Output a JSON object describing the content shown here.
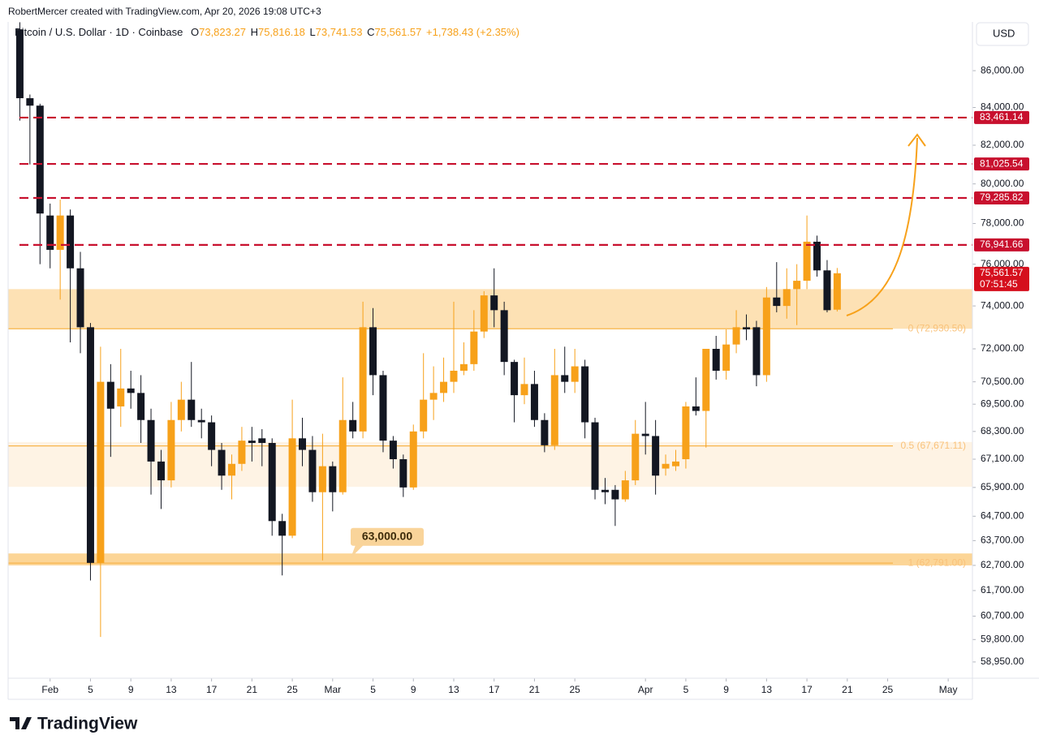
{
  "chart_data": {
    "type": "candlestick",
    "header": "RobertMercer created with TradingView.com, Apr 20, 2026 19:08 UTC+3",
    "legend": {
      "symbol": "Bitcoin / U.S. Dollar · 1D · Coinbase",
      "o": "O",
      "open": "73,823.27",
      "h": "H",
      "high": "75,816.18",
      "l": "L",
      "low": "73,741.53",
      "c": "C",
      "close": "75,561.57",
      "change": "+1,738.43 (+2.35%)"
    },
    "currency": "USD",
    "brand": "TradingView",
    "log_scale": true,
    "up_color": "#f7a11a",
    "down_color": "#131722",
    "x": [
      "2026-01-29",
      "2026-01-30",
      "2026-01-31",
      "2026-02-01",
      "2026-02-02",
      "2026-02-03",
      "2026-02-04",
      "2026-02-05",
      "2026-02-06",
      "2026-02-07",
      "2026-02-08",
      "2026-02-09",
      "2026-02-10",
      "2026-02-11",
      "2026-02-12",
      "2026-02-13",
      "2026-02-14",
      "2026-02-15",
      "2026-02-16",
      "2026-02-17",
      "2026-02-18",
      "2026-02-19",
      "2026-02-20",
      "2026-02-21",
      "2026-02-22",
      "2026-02-23",
      "2026-02-24",
      "2026-02-25",
      "2026-02-26",
      "2026-02-27",
      "2026-02-28",
      "2026-03-01",
      "2026-03-02",
      "2026-03-03",
      "2026-03-04",
      "2026-03-05",
      "2026-03-06",
      "2026-03-07",
      "2026-03-08",
      "2026-03-09",
      "2026-03-10",
      "2026-03-11",
      "2026-03-12",
      "2026-03-13",
      "2026-03-14",
      "2026-03-15",
      "2026-03-16",
      "2026-03-17",
      "2026-03-18",
      "2026-03-19",
      "2026-03-20",
      "2026-03-21",
      "2026-03-22",
      "2026-03-23",
      "2026-03-24",
      "2026-03-25",
      "2026-03-26",
      "2026-03-27",
      "2026-03-28",
      "2026-03-29",
      "2026-03-30",
      "2026-03-31",
      "2026-04-01",
      "2026-04-02",
      "2026-04-03",
      "2026-04-04",
      "2026-04-05",
      "2026-04-06",
      "2026-04-07",
      "2026-04-08",
      "2026-04-09",
      "2026-04-10",
      "2026-04-11",
      "2026-04-12",
      "2026-04-13",
      "2026-04-14",
      "2026-04-15",
      "2026-04-16",
      "2026-04-17",
      "2026-04-18",
      "2026-04-19",
      "2026-04-20"
    ],
    "open": [
      88300,
      84500,
      84100,
      78400,
      76700,
      78400,
      75800,
      73000,
      62800,
      70500,
      69400,
      70200,
      70000,
      68800,
      67000,
      66200,
      68800,
      69700,
      68800,
      68700,
      67500,
      66400,
      66900,
      67900,
      68000,
      67800,
      64500,
      63900,
      68000,
      67500,
      65700,
      66800,
      65700,
      68800,
      68300,
      73000,
      70800,
      67900,
      67100,
      65900,
      68300,
      69700,
      70000,
      70500,
      71000,
      71300,
      72800,
      74500,
      73800,
      71400,
      69900,
      70400,
      68800,
      67700,
      70800,
      70500,
      71200,
      68700,
      65800,
      65800,
      65400,
      66200,
      68200,
      68100,
      66700,
      66800,
      67100,
      69400,
      69200,
      72000,
      71000,
      72200,
      73000,
      73000,
      70800,
      74400,
      74000,
      74800,
      75200,
      77100,
      75700,
      73823.27
    ],
    "high": [
      88700,
      84700,
      84200,
      79000,
      79200,
      78700,
      76600,
      73200,
      72100,
      71300,
      72000,
      71000,
      70800,
      69300,
      67500,
      69600,
      70500,
      71400,
      69300,
      69000,
      67800,
      67300,
      68500,
      68500,
      68400,
      68000,
      64800,
      69700,
      68900,
      68100,
      68200,
      67000,
      70700,
      69600,
      74200,
      73900,
      71000,
      68100,
      67300,
      68600,
      71800,
      71200,
      71600,
      74200,
      72300,
      73800,
      74700,
      75800,
      74200,
      71500,
      71600,
      71000,
      69100,
      72000,
      72100,
      72000,
      71500,
      68900,
      66300,
      66000,
      66600,
      68800,
      69600,
      68800,
      67300,
      67500,
      69600,
      70700,
      72000,
      72600,
      72900,
      73800,
      73600,
      73300,
      74900,
      76100,
      75800,
      76000,
      78400,
      77400,
      76200,
      75816.18
    ],
    "low": [
      83300,
      81000,
      76000,
      75800,
      74300,
      72300,
      71800,
      62100,
      59900,
      67200,
      68500,
      69300,
      67800,
      65600,
      65000,
      65900,
      68300,
      68500,
      68000,
      66800,
      65800,
      65400,
      66600,
      67000,
      66800,
      63900,
      62300,
      63800,
      66800,
      65300,
      62900,
      64900,
      65600,
      68000,
      68000,
      69900,
      67400,
      66700,
      65500,
      65800,
      68000,
      68800,
      69600,
      70000,
      70800,
      71000,
      72500,
      73000,
      70800,
      68700,
      69500,
      68500,
      67400,
      67500,
      70000,
      70000,
      68000,
      65400,
      65200,
      64300,
      65300,
      66000,
      67300,
      65600,
      66400,
      66600,
      66700,
      69000,
      67600,
      70600,
      70600,
      71800,
      72400,
      70300,
      70500,
      73700,
      73400,
      73100,
      74800,
      75400,
      73700,
      73741.53
    ],
    "close": [
      84500,
      84100,
      78500,
      76700,
      78400,
      75800,
      73000,
      62800,
      70500,
      69300,
      70200,
      70000,
      68800,
      67000,
      66200,
      68800,
      69700,
      68800,
      68700,
      67500,
      66400,
      66900,
      67900,
      67800,
      67800,
      64500,
      63900,
      68000,
      67500,
      65700,
      66800,
      65700,
      68800,
      68300,
      73000,
      70800,
      67900,
      67100,
      65900,
      68300,
      69700,
      70000,
      70500,
      71000,
      71300,
      72800,
      74500,
      73800,
      71400,
      69900,
      70400,
      68800,
      67700,
      70800,
      70500,
      71200,
      68700,
      65800,
      65700,
      65400,
      66200,
      68200,
      68100,
      66400,
      66900,
      67000,
      69400,
      69200,
      72000,
      71000,
      72200,
      73000,
      72900,
      70800,
      74400,
      74000,
      74800,
      75200,
      77100,
      75700,
      73800,
      75561.57
    ],
    "xlim": [
      "2026-01-28",
      "2026-05-03"
    ],
    "xticks": [
      {
        "value": "2026-02-01",
        "label": "Feb"
      },
      {
        "value": "2026-02-05",
        "label": "5"
      },
      {
        "value": "2026-02-09",
        "label": "9"
      },
      {
        "value": "2026-02-13",
        "label": "13"
      },
      {
        "value": "2026-02-17",
        "label": "17"
      },
      {
        "value": "2026-02-21",
        "label": "21"
      },
      {
        "value": "2026-02-25",
        "label": "25"
      },
      {
        "value": "2026-03-01",
        "label": "Mar"
      },
      {
        "value": "2026-03-05",
        "label": "5"
      },
      {
        "value": "2026-03-09",
        "label": "9"
      },
      {
        "value": "2026-03-13",
        "label": "13"
      },
      {
        "value": "2026-03-17",
        "label": "17"
      },
      {
        "value": "2026-03-21",
        "label": "21"
      },
      {
        "value": "2026-03-25",
        "label": "25"
      },
      {
        "value": "2026-04-01",
        "label": "Apr"
      },
      {
        "value": "2026-04-05",
        "label": "5"
      },
      {
        "value": "2026-04-09",
        "label": "9"
      },
      {
        "value": "2026-04-13",
        "label": "13"
      },
      {
        "value": "2026-04-17",
        "label": "17"
      },
      {
        "value": "2026-04-21",
        "label": "21"
      },
      {
        "value": "2026-04-25",
        "label": "25"
      },
      {
        "value": "2026-05-01",
        "label": "May"
      }
    ],
    "ylim": [
      58340,
      88720
    ],
    "yticks": [
      {
        "value": 86000,
        "label": "86,000.00"
      },
      {
        "value": 84000,
        "label": "84,000.00"
      },
      {
        "value": 82000,
        "label": "82,000.00"
      },
      {
        "value": 80000,
        "label": "80,000.00"
      },
      {
        "value": 78000,
        "label": "78,000.00"
      },
      {
        "value": 76000,
        "label": "76,000.00"
      },
      {
        "value": 74000,
        "label": "74,000.00"
      },
      {
        "value": 72000,
        "label": "72,000.00"
      },
      {
        "value": 70500,
        "label": "70,500.00"
      },
      {
        "value": 69500,
        "label": "69,500.00"
      },
      {
        "value": 68300,
        "label": "68,300.00"
      },
      {
        "value": 67100,
        "label": "67,100.00"
      },
      {
        "value": 65900,
        "label": "65,900.00"
      },
      {
        "value": 64700,
        "label": "64,700.00"
      },
      {
        "value": 63700,
        "label": "63,700.00"
      },
      {
        "value": 62700,
        "label": "62,700.00"
      },
      {
        "value": 61700,
        "label": "61,700.00"
      },
      {
        "value": 60700,
        "label": "60,700.00"
      },
      {
        "value": 59800,
        "label": "59,800.00"
      },
      {
        "value": 58950,
        "label": "58,950.00"
      }
    ],
    "zones": [
      {
        "from": 72930.5,
        "to": 74800,
        "color": "#fde1b4"
      },
      {
        "from": 65930,
        "to": 67840,
        "color": "#fef3e4"
      },
      {
        "from": 62700,
        "to": 63180,
        "color": "#fcd596"
      }
    ],
    "levels": [
      {
        "value": 83461.14,
        "label": "83,461.14"
      },
      {
        "value": 81025.54,
        "label": "81,025.54"
      },
      {
        "value": 79285.82,
        "label": "79,285.82"
      },
      {
        "value": 76941.66,
        "label": "76,941.66"
      }
    ],
    "level_color": "#c8102e",
    "fib_levels": [
      {
        "value": 72930.5,
        "label": "0 (72,930.50)"
      },
      {
        "value": 67671.11,
        "label": "0.5 (67,671.11)"
      },
      {
        "value": 62791,
        "label": "1 (62,791.00)"
      }
    ],
    "callout": {
      "value": 63000,
      "label": "63,000.00"
    },
    "last_price": {
      "value": 75561.57,
      "label": "75,561.57"
    },
    "countdown": "07:51:45"
  }
}
